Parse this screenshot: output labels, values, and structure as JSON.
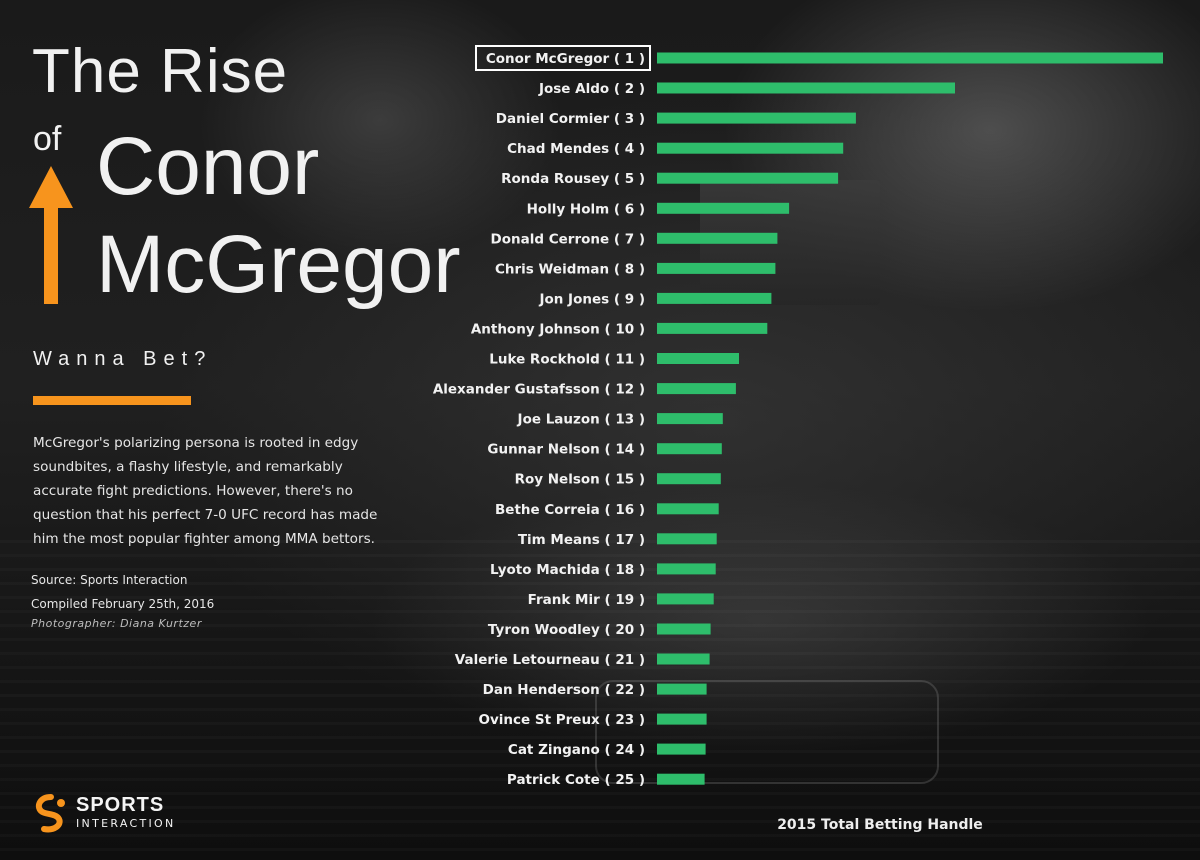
{
  "title": {
    "line1": "The Rise",
    "of": "of",
    "name_line1": "Conor",
    "name_line2": "McGregor"
  },
  "tagline": "Wanna Bet?",
  "description": "McGregor's polarizing persona is rooted in edgy soundbites, a flashy lifestyle, and remarkably accurate fight predictions. However, there's no question that his perfect 7-0 UFC record has made him the most popular fighter among MMA bettors.",
  "source": "Source: Sports Interaction",
  "compiled": "Compiled February 25th, 2016",
  "photographer": "Photographer: Diana Kurtzer",
  "logo": {
    "line1": "SPORTS",
    "line2": "INTERACTION"
  },
  "colors": {
    "bar": "#2ebd6b",
    "accent": "#f7941d",
    "highlight_box": "#ffffff"
  },
  "chart_data": {
    "type": "bar",
    "orientation": "horizontal",
    "xlabel": "2015 Total Betting Handle",
    "highlighted": "Conor McGregor ( 1 )",
    "categories": [
      "Conor McGregor ( 1 )",
      "Jose Aldo ( 2 )",
      "Daniel Cormier ( 3 )",
      "Chad Mendes ( 4 )",
      "Ronda Rousey ( 5 )",
      "Holly Holm ( 6 )",
      "Donald Cerrone ( 7 )",
      "Chris Weidman ( 8 )",
      "Jon Jones ( 9 )",
      "Anthony Johnson ( 10 )",
      "Luke Rockhold ( 11 )",
      "Alexander Gustafsson ( 12 )",
      "Joe Lauzon ( 13 )",
      "Gunnar Nelson ( 14 )",
      "Roy Nelson ( 15 )",
      "Bethe Correia ( 16 )",
      "Tim Means ( 17 )",
      "Lyoto Machida ( 18 )",
      "Frank Mir ( 19 )",
      "Tyron Woodley ( 20 )",
      "Valerie Letourneau ( 21 )",
      "Dan Henderson ( 22 )",
      "Ovince St Preux ( 23 )",
      "Cat Zingano ( 24 )",
      "Patrick Cote ( 25 )"
    ],
    "values": [
      100,
      58.9,
      39.3,
      36.8,
      35.8,
      26.1,
      23.8,
      23.4,
      22.6,
      21.8,
      16.2,
      15.6,
      13.0,
      12.8,
      12.6,
      12.2,
      11.8,
      11.6,
      11.2,
      10.6,
      10.4,
      9.8,
      9.8,
      9.6,
      9.4
    ],
    "xlim": [
      0,
      100
    ],
    "grid": false
  }
}
